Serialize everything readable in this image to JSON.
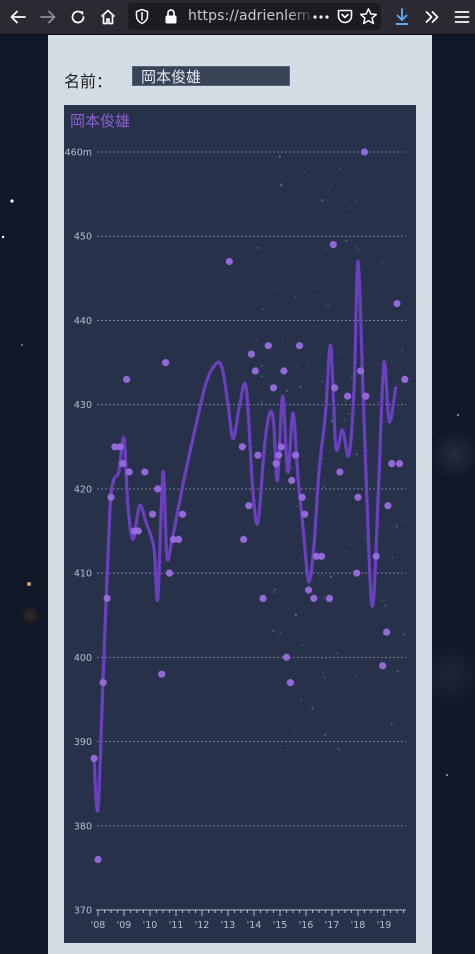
{
  "browser": {
    "url": "https://adrienlem",
    "toolbar_icons": [
      "back-arrow-icon",
      "forward-arrow-icon",
      "reload-icon",
      "home-icon",
      "shield-icon",
      "lock-icon",
      "more-dots-icon",
      "pocket-icon",
      "bookmark-star-icon",
      "download-icon",
      "overflow-chevrons-icon",
      "hamburger-menu-icon"
    ]
  },
  "form": {
    "name_label": "名前：",
    "name_value": "岡本俊雄"
  },
  "colors": {
    "line": "#6a3fc0",
    "point": "#9a6be0",
    "title": "#8b5fd6",
    "chart_bg": "#27324a",
    "panel": "#d3dde5"
  },
  "chart_data": {
    "type": "line",
    "title": "岡本俊雄",
    "ylim": [
      370,
      460
    ],
    "yticks": [
      "370",
      "380",
      "390",
      "400",
      "410",
      "420",
      "430",
      "440",
      "450",
      "460m"
    ],
    "xticks": [
      "'08",
      "'09",
      "'10",
      "'11",
      "'12",
      "'13",
      "'14",
      "'15",
      "'16",
      "'17",
      "'18",
      "'19"
    ],
    "xlim": [
      2008,
      2020
    ],
    "grid": true,
    "series": [
      {
        "kind": "smoothed-line",
        "points": [
          [
            2007.85,
            388
          ],
          [
            2008.0,
            382
          ],
          [
            2008.2,
            398
          ],
          [
            2008.45,
            417
          ],
          [
            2008.6,
            421
          ],
          [
            2008.8,
            422
          ],
          [
            2009.0,
            426
          ],
          [
            2009.15,
            418
          ],
          [
            2009.35,
            414
          ],
          [
            2009.6,
            418
          ],
          [
            2009.85,
            416
          ],
          [
            2010.15,
            413
          ],
          [
            2010.3,
            407
          ],
          [
            2010.5,
            422
          ],
          [
            2010.65,
            412
          ],
          [
            2010.85,
            414
          ],
          [
            2011.3,
            421
          ],
          [
            2011.8,
            428
          ],
          [
            2012.2,
            433
          ],
          [
            2012.6,
            435
          ],
          [
            2012.8,
            434
          ],
          [
            2013.0,
            430
          ],
          [
            2013.2,
            426
          ],
          [
            2013.45,
            430
          ],
          [
            2013.7,
            432
          ],
          [
            2013.95,
            420
          ],
          [
            2014.15,
            416
          ],
          [
            2014.4,
            425
          ],
          [
            2014.6,
            429
          ],
          [
            2014.75,
            428
          ],
          [
            2014.9,
            421
          ],
          [
            2015.1,
            431
          ],
          [
            2015.3,
            422
          ],
          [
            2015.5,
            429
          ],
          [
            2015.7,
            421
          ],
          [
            2015.9,
            415
          ],
          [
            2016.1,
            409
          ],
          [
            2016.3,
            413
          ],
          [
            2016.5,
            422
          ],
          [
            2016.75,
            429
          ],
          [
            2016.95,
            437
          ],
          [
            2017.15,
            425
          ],
          [
            2017.4,
            427
          ],
          [
            2017.65,
            424
          ],
          [
            2017.85,
            432
          ],
          [
            2018.0,
            447
          ],
          [
            2018.2,
            431
          ],
          [
            2018.45,
            410
          ],
          [
            2018.6,
            407
          ],
          [
            2018.8,
            421
          ],
          [
            2019.0,
            435
          ],
          [
            2019.2,
            428
          ],
          [
            2019.45,
            432
          ]
        ]
      },
      {
        "kind": "scatter",
        "points": [
          [
            2007.85,
            388
          ],
          [
            2008.0,
            376
          ],
          [
            2008.2,
            397
          ],
          [
            2008.35,
            407
          ],
          [
            2008.5,
            419
          ],
          [
            2008.65,
            425
          ],
          [
            2008.85,
            425
          ],
          [
            2008.95,
            423
          ],
          [
            2009.1,
            433
          ],
          [
            2009.2,
            422
          ],
          [
            2009.4,
            415
          ],
          [
            2009.55,
            415
          ],
          [
            2009.8,
            422
          ],
          [
            2010.1,
            417
          ],
          [
            2010.3,
            420
          ],
          [
            2010.45,
            398
          ],
          [
            2010.6,
            435
          ],
          [
            2010.75,
            410
          ],
          [
            2010.9,
            414
          ],
          [
            2011.1,
            414
          ],
          [
            2011.25,
            417
          ],
          [
            2013.05,
            447
          ],
          [
            2013.55,
            425
          ],
          [
            2013.6,
            414
          ],
          [
            2013.8,
            418
          ],
          [
            2013.9,
            436
          ],
          [
            2014.05,
            434
          ],
          [
            2014.15,
            424
          ],
          [
            2014.35,
            407
          ],
          [
            2014.55,
            437
          ],
          [
            2014.75,
            432
          ],
          [
            2014.85,
            423
          ],
          [
            2014.95,
            424
          ],
          [
            2015.05,
            425
          ],
          [
            2015.15,
            434
          ],
          [
            2015.25,
            400
          ],
          [
            2015.4,
            397
          ],
          [
            2015.45,
            421
          ],
          [
            2015.6,
            424
          ],
          [
            2015.75,
            437
          ],
          [
            2015.85,
            419
          ],
          [
            2015.95,
            417
          ],
          [
            2016.1,
            408
          ],
          [
            2016.3,
            407
          ],
          [
            2016.4,
            412
          ],
          [
            2016.6,
            412
          ],
          [
            2016.9,
            407
          ],
          [
            2017.05,
            449
          ],
          [
            2017.1,
            432
          ],
          [
            2017.3,
            422
          ],
          [
            2017.6,
            431
          ],
          [
            2017.95,
            410
          ],
          [
            2018.0,
            419
          ],
          [
            2018.1,
            434
          ],
          [
            2018.25,
            460
          ],
          [
            2018.3,
            431
          ],
          [
            2018.7,
            412
          ],
          [
            2018.95,
            399
          ],
          [
            2019.1,
            403
          ],
          [
            2019.15,
            418
          ],
          [
            2019.3,
            423
          ],
          [
            2019.5,
            442
          ],
          [
            2019.6,
            423
          ],
          [
            2019.8,
            433
          ]
        ]
      }
    ]
  }
}
